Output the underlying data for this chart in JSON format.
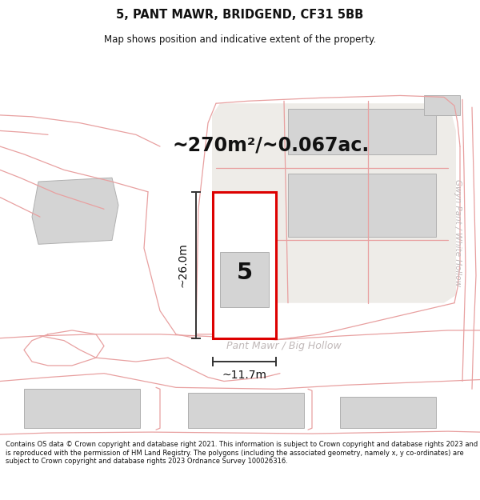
{
  "title": "5, PANT MAWR, BRIDGEND, CF31 5BB",
  "subtitle": "Map shows position and indicative extent of the property.",
  "area_text": "~270m²/~0.067ac.",
  "dim_height": "~26.0m",
  "dim_width": "~11.7m",
  "property_number": "5",
  "road_label": "Pant Mawr / Big Hollow",
  "road_label2": "Gwyn Pant / White Hollow",
  "footer": "Contains OS data © Crown copyright and database right 2021. This information is subject to Crown copyright and database rights 2023 and is reproduced with the permission of HM Land Registry. The polygons (including the associated geometry, namely x, y co-ordinates) are subject to Crown copyright and database rights 2023 Ordnance Survey 100026316.",
  "map_bg": "#f7f6f4",
  "red_line": "#e8a0a0",
  "red_outline": "#dd0000",
  "gray_fill": "#d4d4d4",
  "gray_edge": "#b0b0b0",
  "dim_color": "#333333",
  "text_color": "#111111",
  "road_text_color": "#c0b8b8",
  "white": "#ffffff"
}
